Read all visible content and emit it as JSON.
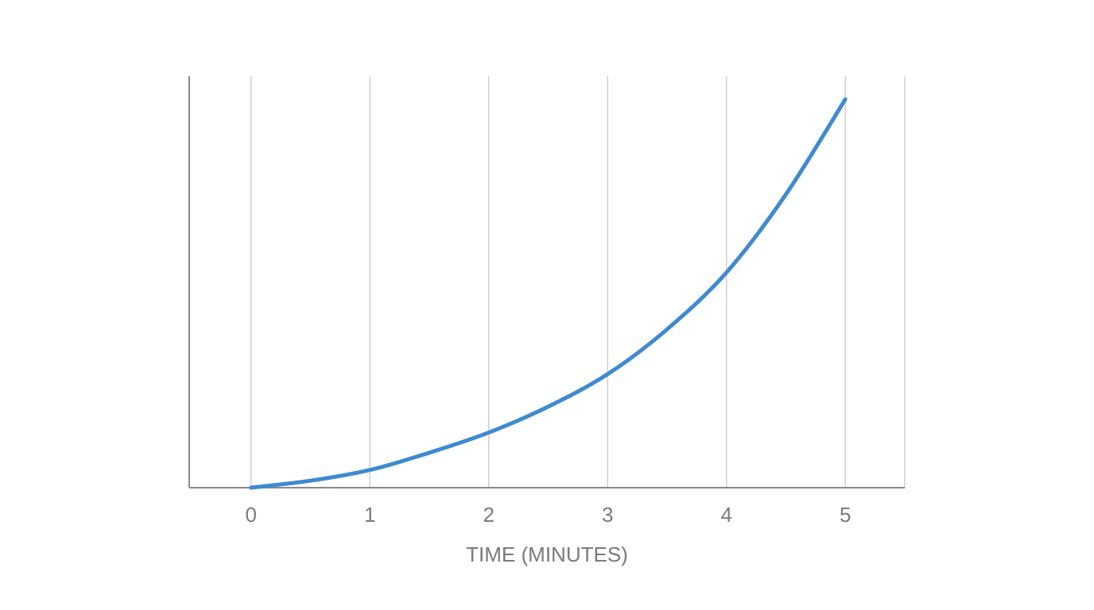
{
  "chart_data": {
    "type": "line",
    "title": "",
    "xlabel": "TIME (MINUTES)",
    "ylabel": "",
    "x_ticks": [
      "0",
      "1",
      "2",
      "3",
      "4",
      "5"
    ],
    "xlim": [
      -0.52,
      5.5
    ],
    "ylim": [
      0,
      1
    ],
    "grid": "vertical",
    "legend": "none",
    "colors": {
      "line": "#3f8ad0",
      "grid": "#cfcfcf",
      "axis": "#8a8a8a",
      "text": "#7a7a7a"
    },
    "series": [
      {
        "x": [
          0,
          0.5,
          1,
          1.5,
          2,
          2.5,
          3,
          3.5,
          4,
          4.5,
          5
        ],
        "y": [
          0,
          0.017,
          0.043,
          0.085,
          0.134,
          0.197,
          0.276,
          0.385,
          0.523,
          0.713,
          0.944
        ]
      }
    ]
  }
}
